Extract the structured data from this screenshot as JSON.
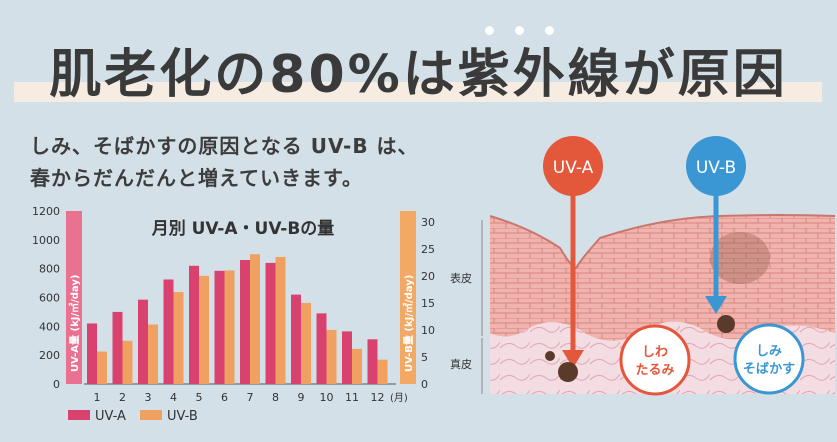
{
  "headline": "肌老化の80%は紫外線が原因",
  "subtitle_line1": "しみ、そばかすの原因となる UV-B は、",
  "subtitle_line2": "春からだんだんと増えていきます。",
  "chart_data": {
    "type": "bar",
    "title": "月別 UV-A・UV-Bの量",
    "categories": [
      "1",
      "2",
      "3",
      "4",
      "5",
      "6",
      "7",
      "8",
      "9",
      "10",
      "11",
      "12"
    ],
    "x_unit": "(月)",
    "series": [
      {
        "name": "UV-A",
        "axis": "left",
        "color": "#d9426e",
        "values": [
          420,
          500,
          585,
          725,
          820,
          785,
          860,
          840,
          620,
          490,
          365,
          310
        ]
      },
      {
        "name": "UV-B",
        "axis": "right",
        "color": "#f0a060",
        "values": [
          6,
          8,
          11,
          17,
          20,
          21,
          24,
          23.5,
          15,
          10,
          6.5,
          4.5
        ]
      }
    ],
    "left_axis": {
      "label": "UV-A量 (kJ/㎡/day)",
      "ylim": [
        0,
        1200
      ],
      "ticks": [
        "0",
        "200",
        "400",
        "600",
        "800",
        "1000",
        "1200"
      ],
      "color": "#e8728f"
    },
    "right_axis": {
      "label": "UV-B量 (kJ/㎡/day)",
      "ylim": [
        0,
        32
      ],
      "ticks": [
        "0",
        "5",
        "10",
        "15",
        "20",
        "25",
        "30"
      ],
      "color": "#f3a864"
    },
    "legend": "bottom-left"
  },
  "diagram": {
    "uva_label": "UV-A",
    "uvb_label": "UV-B",
    "uva_color": "#e3573b",
    "uvb_color": "#3a97d4",
    "layer_epidermis": "表皮",
    "layer_dermis": "真皮",
    "uva_effect_line1": "しわ",
    "uva_effect_line2": "たるみ",
    "uvb_effect_line1": "しみ",
    "uvb_effect_line2": "そばかす"
  }
}
